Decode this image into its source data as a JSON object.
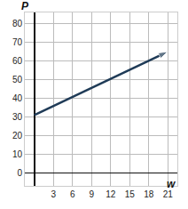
{
  "chart_data": {
    "type": "line",
    "x": [
      0,
      21
    ],
    "values": [
      31,
      65
    ],
    "x_label": "w",
    "y_label": "P",
    "xlim": [
      -1.5,
      22.5
    ],
    "ylim": [
      -7,
      86
    ],
    "xticks": [
      3,
      6,
      9,
      12,
      15,
      18,
      21
    ],
    "yticks": [
      0,
      10,
      20,
      30,
      40,
      50,
      60,
      70,
      80
    ],
    "grid": true,
    "color": "#1f3b57",
    "marker": "arrow"
  }
}
